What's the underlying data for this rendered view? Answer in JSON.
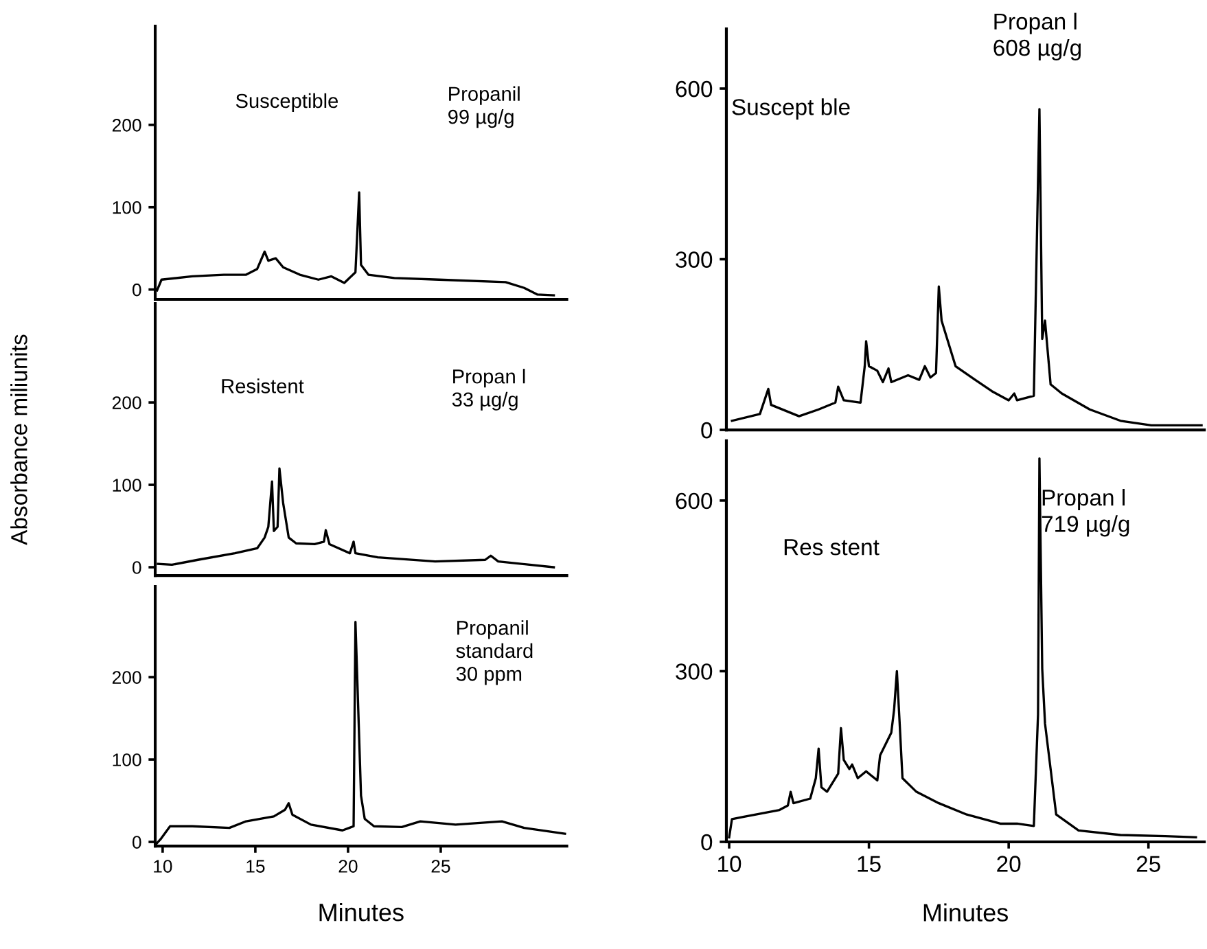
{
  "chart_data": [
    {
      "type": "line",
      "title": "Susceptible",
      "annotations": [
        "Propanil\n99 µg/g"
      ],
      "color": "#000000",
      "xlim": [
        9.6,
        31.8
      ],
      "ylim": [
        -12,
        320
      ],
      "yticks": [
        0,
        100,
        200
      ],
      "tick_labels": "y",
      "x": [
        9.7,
        9.94,
        11.6,
        13.3,
        14.5,
        15.1,
        15.5,
        15.7,
        16.1,
        16.5,
        17.4,
        18.4,
        19.1,
        19.8,
        20.4,
        20.6,
        20.7,
        21.1,
        22.5,
        24.9,
        28.5,
        29.5,
        30.2,
        31.1
      ],
      "values": [
        -1,
        12,
        16,
        18,
        18,
        25,
        46,
        35,
        38,
        27,
        18,
        12,
        16,
        8,
        21,
        118,
        30,
        18,
        14,
        12,
        9,
        2,
        -6,
        -7
      ]
    },
    {
      "type": "line",
      "title": "Resistent",
      "annotations": [
        "Propan l\n33 µg/g"
      ],
      "ylabel": "Absorbance miliunits",
      "color": "#000000",
      "xlim": [
        9.6,
        31.8
      ],
      "ylim": [
        -10,
        320
      ],
      "yticks": [
        0,
        100,
        200
      ],
      "tick_labels": "y",
      "x": [
        9.75,
        10.5,
        11.9,
        13.9,
        15.1,
        15.5,
        15.7,
        15.9,
        16.0,
        16.2,
        16.3,
        16.5,
        16.8,
        17.2,
        18.2,
        18.7,
        18.8,
        19.0,
        20.1,
        20.3,
        20.4,
        21.6,
        24.7,
        27.4,
        27.7,
        28.1,
        31.1
      ],
      "values": [
        4,
        3,
        9,
        17,
        23,
        36,
        49,
        104,
        44,
        49,
        120,
        78,
        36,
        29,
        28,
        31,
        45,
        28,
        17,
        31,
        17,
        12,
        7,
        9,
        14,
        7,
        0
      ]
    },
    {
      "type": "line",
      "annotations": [
        "Propanil\nstandard\n30 ppm"
      ],
      "xlabel": "Minutes",
      "color": "#000000",
      "xlim": [
        9.6,
        31.8
      ],
      "ylim": [
        -5,
        310
      ],
      "xticks": [
        10,
        15,
        20,
        25
      ],
      "yticks": [
        0,
        100,
        200
      ],
      "x": [
        9.63,
        9.88,
        10.4,
        11.6,
        13.6,
        14.5,
        16.0,
        16.6,
        16.8,
        17.0,
        18.0,
        19.7,
        20.3,
        20.4,
        20.7,
        20.9,
        21.4,
        22.9,
        23.9,
        25.8,
        28.3,
        29.5,
        31.7
      ],
      "values": [
        -3,
        3,
        19,
        19,
        17,
        25,
        31,
        39,
        47,
        33,
        21,
        14,
        19,
        267,
        56,
        28,
        19,
        18,
        25,
        21,
        25,
        17,
        10
      ]
    },
    {
      "type": "line",
      "title": "Suscept ble",
      "annotations": [
        "Propan l\n608 µg/g"
      ],
      "color": "#000000",
      "xlim": [
        9.9,
        27.0
      ],
      "ylim": [
        0,
        705
      ],
      "yticks": [
        0,
        300,
        600
      ],
      "tick_labels": "y",
      "x": [
        10.1,
        11.1,
        11.4,
        11.5,
        12.5,
        13.2,
        13.8,
        13.9,
        14.1,
        14.7,
        14.85,
        14.9,
        15.0,
        15.3,
        15.5,
        15.7,
        15.8,
        16.4,
        16.8,
        17.0,
        17.2,
        17.4,
        17.5,
        17.6,
        18.1,
        18.8,
        19.4,
        20.0,
        20.2,
        20.3,
        20.9,
        21.1,
        21.2,
        21.3,
        21.5,
        21.9,
        22.9,
        24.0,
        25.1,
        26.9
      ],
      "values": [
        16,
        28,
        72,
        44,
        24,
        36,
        48,
        76,
        52,
        48,
        112,
        156,
        112,
        104,
        84,
        108,
        84,
        96,
        88,
        112,
        92,
        100,
        252,
        192,
        112,
        88,
        68,
        52,
        64,
        52,
        60,
        564,
        160,
        192,
        80,
        64,
        36,
        16,
        8,
        8
      ]
    },
    {
      "type": "line",
      "title": "Res stent",
      "annotations": [
        "Propan l\n719 µg/g"
      ],
      "xlabel": "Minutes",
      "color": "#000000",
      "xlim": [
        9.9,
        27.0
      ],
      "ylim": [
        0,
        705
      ],
      "xticks": [
        10,
        15,
        20,
        25
      ],
      "yticks": [
        0,
        300,
        600
      ],
      "x": [
        10.0,
        10.1,
        10.5,
        11.8,
        12.1,
        12.2,
        12.3,
        12.9,
        13.1,
        13.2,
        13.3,
        13.5,
        13.9,
        14.0,
        14.1,
        14.3,
        14.4,
        14.6,
        14.9,
        15.3,
        15.4,
        15.8,
        15.9,
        16.0,
        16.1,
        16.2,
        16.7,
        17.5,
        18.5,
        19.7,
        20.3,
        20.9,
        21.05,
        21.1,
        21.2,
        21.3,
        21.7,
        22.5,
        24.0,
        25.6,
        26.7
      ],
      "values": [
        8,
        40,
        44,
        56,
        64,
        88,
        68,
        76,
        112,
        164,
        96,
        88,
        120,
        200,
        144,
        128,
        136,
        112,
        124,
        108,
        152,
        192,
        232,
        300,
        208,
        112,
        88,
        68,
        48,
        32,
        32,
        28,
        224,
        674,
        304,
        208,
        48,
        20,
        12,
        10,
        8
      ]
    }
  ]
}
